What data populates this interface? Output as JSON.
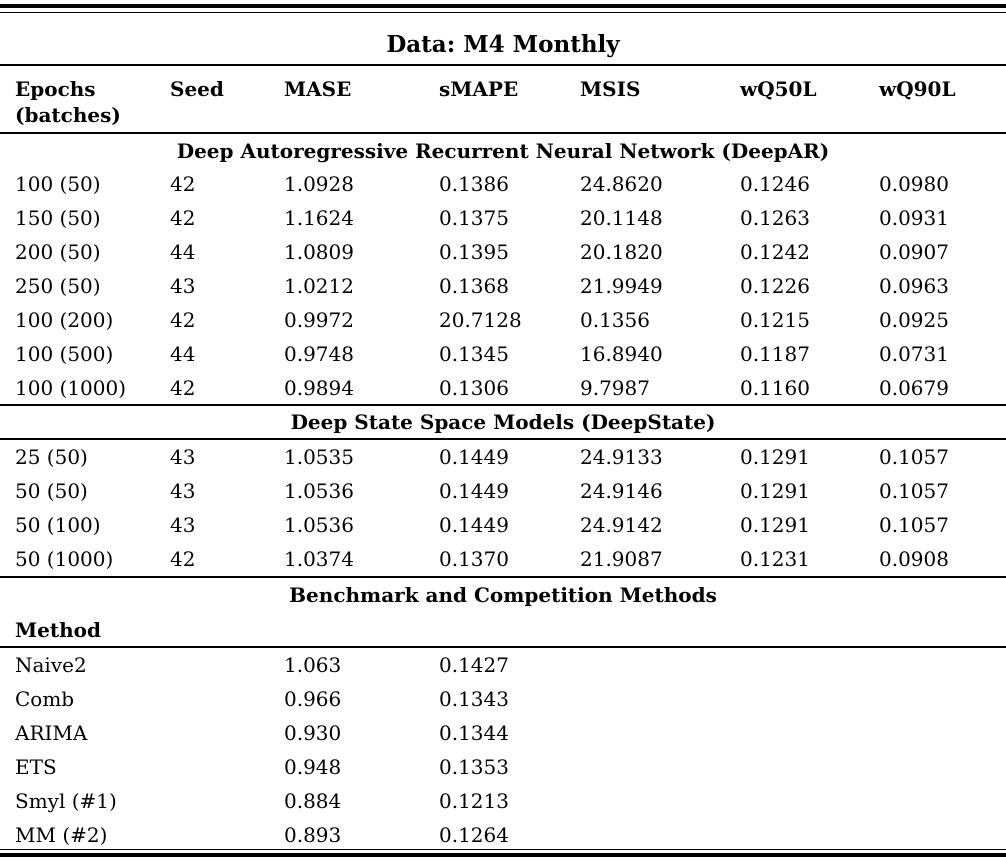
{
  "title": "Data: M4 Monthly",
  "columns": [
    "Epochs (batches)",
    "Seed",
    "MASE",
    "sMAPE",
    "MSIS",
    "wQ50L",
    "wQ90L"
  ],
  "col_epochs_line1": "Epochs",
  "col_epochs_line2": "(batches)",
  "sections": [
    {
      "title": "Deep Autoregressive Recurrent Neural Network (DeepAR)",
      "rows": [
        [
          "100 (50)",
          "42",
          "1.0928",
          "0.1386",
          "24.8620",
          "0.1246",
          "0.0980"
        ],
        [
          "150 (50)",
          "42",
          "1.1624",
          "0.1375",
          "20.1148",
          "0.1263",
          "0.0931"
        ],
        [
          "200 (50)",
          "44",
          "1.0809",
          "0.1395",
          "20.1820",
          "0.1242",
          "0.0907"
        ],
        [
          "250 (50)",
          "43",
          "1.0212",
          "0.1368",
          "21.9949",
          "0.1226",
          "0.0963"
        ],
        [
          "100 (200)",
          "42",
          "0.9972",
          "20.7128",
          "0.1356",
          "0.1215",
          "0.0925"
        ],
        [
          "100 (500)",
          "44",
          "0.9748",
          "0.1345",
          "16.8940",
          "0.1187",
          "0.0731"
        ],
        [
          "100 (1000)",
          "42",
          "0.9894",
          "0.1306",
          "9.7987",
          "0.1160",
          "0.0679"
        ]
      ]
    },
    {
      "title": "Deep State Space Models (DeepState)",
      "rows": [
        [
          "25 (50)",
          "43",
          "1.0535",
          "0.1449",
          "24.9133",
          "0.1291",
          "0.1057"
        ],
        [
          "50 (50)",
          "43",
          "1.0536",
          "0.1449",
          "24.9146",
          "0.1291",
          "0.1057"
        ],
        [
          "50 (100)",
          "43",
          "1.0536",
          "0.1449",
          "24.9142",
          "0.1291",
          "0.1057"
        ],
        [
          "50 (1000)",
          "42",
          "1.0374",
          "0.1370",
          "21.9087",
          "0.1231",
          "0.0908"
        ]
      ]
    }
  ],
  "benchmark": {
    "title": "Benchmark and Competition Methods",
    "method_header": "Method",
    "rows": [
      [
        "Naive2",
        "1.063",
        "0.1427"
      ],
      [
        "Comb",
        "0.966",
        "0.1343"
      ],
      [
        "ARIMA",
        "0.930",
        "0.1344"
      ],
      [
        "ETS",
        "0.948",
        "0.1353"
      ],
      [
        "Smyl (#1)",
        "0.884",
        "0.1213"
      ],
      [
        "MM (#2)",
        "0.893",
        "0.1264"
      ]
    ]
  }
}
